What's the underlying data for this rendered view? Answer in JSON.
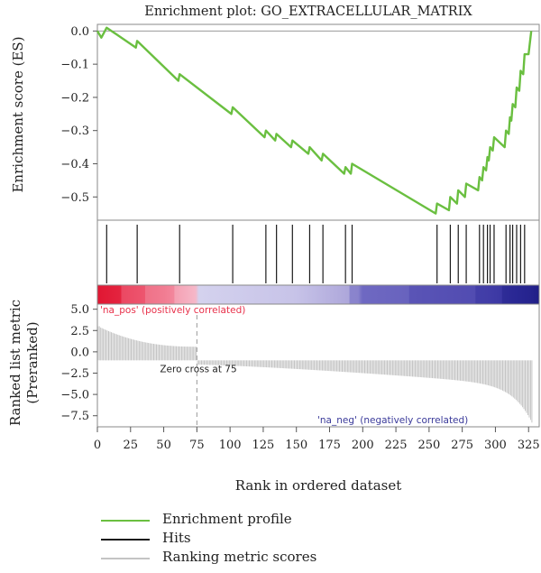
{
  "chart_data": {
    "type": "line",
    "title": "Enrichment plot: GO_EXTRACELLULAR_MATRIX",
    "xlabel": "Rank in ordered dataset",
    "xlim": [
      0,
      333
    ],
    "xticks": [
      0,
      25,
      50,
      75,
      100,
      125,
      150,
      175,
      200,
      225,
      250,
      275,
      300,
      325
    ],
    "es_panel": {
      "ylabel": "Enrichment score (ES)",
      "ylim": [
        -0.57,
        0.02
      ],
      "yticks": [
        0.0,
        -0.1,
        -0.2,
        -0.3,
        -0.4,
        -0.5
      ],
      "ytick_labels": [
        "0.0",
        "−0.1",
        "−0.2",
        "−0.3",
        "−0.4",
        "−0.5"
      ]
    },
    "hits": [
      7,
      30,
      62,
      102,
      127,
      135,
      147,
      160,
      170,
      187,
      192,
      256,
      266,
      272,
      278,
      288,
      291,
      294,
      296,
      299,
      308,
      311,
      313,
      316,
      319,
      322
    ],
    "es_points": [
      [
        0,
        0
      ],
      [
        3,
        -0.02
      ],
      [
        7,
        0.01
      ],
      [
        29,
        -0.05
      ],
      [
        30,
        -0.03
      ],
      [
        61,
        -0.15
      ],
      [
        62,
        -0.13
      ],
      [
        101,
        -0.25
      ],
      [
        102,
        -0.23
      ],
      [
        126,
        -0.32
      ],
      [
        127,
        -0.3
      ],
      [
        134,
        -0.33
      ],
      [
        135,
        -0.31
      ],
      [
        146,
        -0.35
      ],
      [
        147,
        -0.33
      ],
      [
        159,
        -0.37
      ],
      [
        160,
        -0.35
      ],
      [
        169,
        -0.39
      ],
      [
        170,
        -0.37
      ],
      [
        186,
        -0.43
      ],
      [
        187,
        -0.41
      ],
      [
        191,
        -0.43
      ],
      [
        192,
        -0.4
      ],
      [
        255,
        -0.55
      ],
      [
        256,
        -0.52
      ],
      [
        265,
        -0.54
      ],
      [
        266,
        -0.5
      ],
      [
        271,
        -0.52
      ],
      [
        272,
        -0.48
      ],
      [
        277,
        -0.5
      ],
      [
        278,
        -0.46
      ],
      [
        287,
        -0.48
      ],
      [
        288,
        -0.44
      ],
      [
        290,
        -0.45
      ],
      [
        291,
        -0.41
      ],
      [
        293,
        -0.42
      ],
      [
        294,
        -0.38
      ],
      [
        295,
        -0.39
      ],
      [
        296,
        -0.35
      ],
      [
        298,
        -0.36
      ],
      [
        299,
        -0.32
      ],
      [
        307,
        -0.35
      ],
      [
        308,
        -0.3
      ],
      [
        310,
        -0.31
      ],
      [
        311,
        -0.26
      ],
      [
        312,
        -0.27
      ],
      [
        313,
        -0.22
      ],
      [
        315,
        -0.23
      ],
      [
        316,
        -0.17
      ],
      [
        318,
        -0.18
      ],
      [
        319,
        -0.12
      ],
      [
        321,
        -0.13
      ],
      [
        322,
        -0.07
      ],
      [
        325,
        -0.07
      ],
      [
        327,
        0.0
      ]
    ],
    "metric_panel": {
      "ylabel_line1": "Ranked list metric",
      "ylabel_line2": "(Preranked)",
      "ylim": [
        -8.8,
        5.6
      ],
      "yticks": [
        5.0,
        2.5,
        0.0,
        -2.5,
        -5.0,
        -7.5
      ],
      "ytick_labels": [
        "5.0",
        "2.5",
        "0.0",
        "−2.5",
        "−5.0",
        "−7.5"
      ],
      "baseline": -1.0,
      "zero_cross_rank": 75,
      "zero_cross_label": "Zero cross at 75",
      "pos_label": "'na_pos' (positively correlated)",
      "neg_label": "'na_neg' (negatively correlated)",
      "n_ranks": 328,
      "start_value": 3.0,
      "cross_value": 0.6,
      "end_value": -8.3
    },
    "colors": {
      "es_line": "#6abf40",
      "hits": "#1a1a1a",
      "metric": "#c4c4c4",
      "pos_label": "#e8304a",
      "neg_label": "#3a3a9a",
      "frame": "#8a8a8a",
      "zero_line": "#9a9a9a"
    }
  },
  "legend": [
    {
      "label": "Enrichment profile",
      "color": "#6abf40"
    },
    {
      "label": "Hits",
      "color": "#1a1a1a"
    },
    {
      "label": "Ranking metric scores",
      "color": "#c4c4c4"
    }
  ]
}
